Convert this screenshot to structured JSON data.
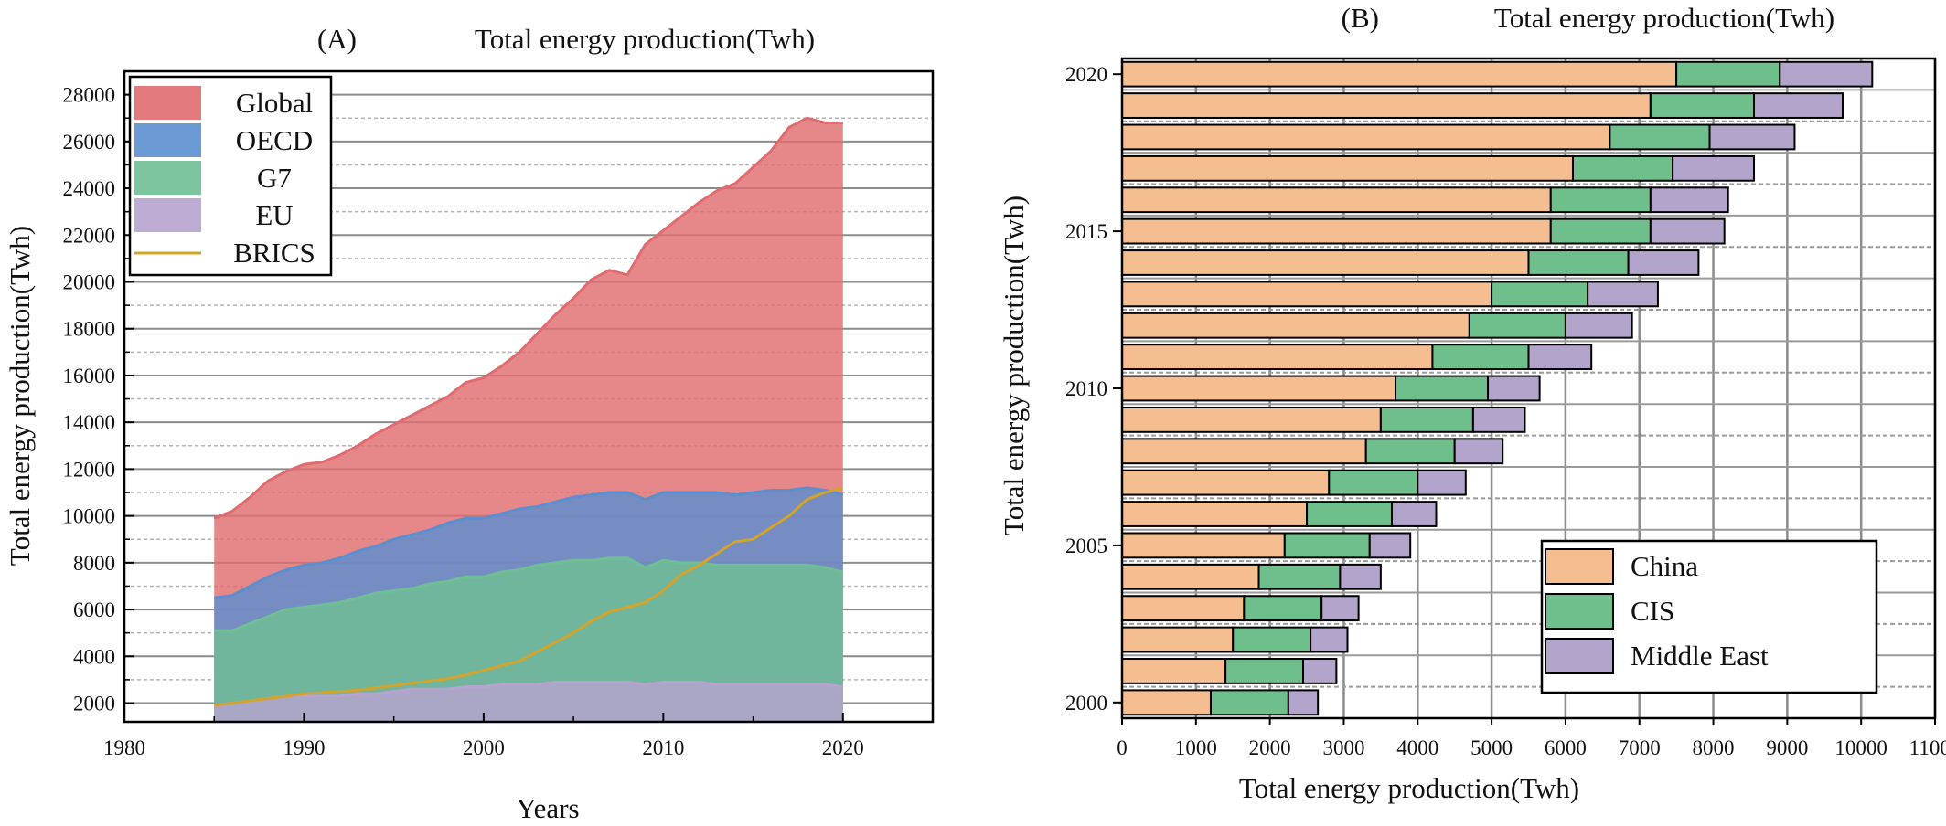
{
  "chart_data": [
    {
      "type": "area",
      "panel": "(A)",
      "title": "Total energy production(Twh)",
      "xlabel": "Years",
      "ylabel": "Total energy production(Twh)",
      "xlim": [
        1980,
        2025
      ],
      "ylim": [
        1200,
        29000
      ],
      "x_ticks": [
        1980,
        1990,
        2000,
        2010,
        2020
      ],
      "y_ticks": [
        2000,
        4000,
        6000,
        8000,
        10000,
        12000,
        14000,
        16000,
        18000,
        20000,
        22000,
        24000,
        26000,
        28000
      ],
      "grid": "horizontal",
      "legend_position": "top-left",
      "colors": {
        "Global": "#e06c6f",
        "OECD": "#5b8fcf",
        "G7": "#6fbf95",
        "EU": "#b7a3cf",
        "BRICS": "#d4a32a"
      },
      "x": [
        1985,
        1986,
        1987,
        1988,
        1989,
        1990,
        1991,
        1992,
        1993,
        1994,
        1995,
        1996,
        1997,
        1998,
        1999,
        2000,
        2001,
        2002,
        2003,
        2004,
        2005,
        2006,
        2007,
        2008,
        2009,
        2010,
        2011,
        2012,
        2013,
        2014,
        2015,
        2016,
        2017,
        2018,
        2019,
        2020
      ],
      "series": [
        {
          "name": "Global",
          "kind": "area",
          "values": [
            9900,
            10200,
            10800,
            11500,
            11900,
            12200,
            12300,
            12600,
            13000,
            13500,
            13900,
            14300,
            14700,
            15100,
            15700,
            15900,
            16400,
            17000,
            17800,
            18600,
            19300,
            20100,
            20500,
            20300,
            21600,
            22200,
            22800,
            23400,
            23900,
            24200,
            24900,
            25600,
            26600,
            27000,
            26800,
            26800
          ]
        },
        {
          "name": "OECD",
          "kind": "area",
          "values": [
            6500,
            6600,
            7000,
            7400,
            7700,
            7900,
            8000,
            8200,
            8500,
            8700,
            9000,
            9200,
            9400,
            9700,
            9900,
            9900,
            10100,
            10300,
            10400,
            10600,
            10800,
            10900,
            11000,
            11000,
            10700,
            11000,
            11000,
            11000,
            11000,
            10900,
            11000,
            11100,
            11100,
            11200,
            11100,
            10900
          ]
        },
        {
          "name": "G7",
          "kind": "area",
          "values": [
            5100,
            5100,
            5400,
            5700,
            6000,
            6100,
            6200,
            6300,
            6500,
            6700,
            6800,
            6900,
            7100,
            7200,
            7400,
            7400,
            7600,
            7700,
            7900,
            8000,
            8100,
            8100,
            8200,
            8200,
            7800,
            8100,
            8000,
            8000,
            7900,
            7900,
            7900,
            7900,
            7900,
            7900,
            7800,
            7600
          ]
        },
        {
          "name": "EU",
          "kind": "area",
          "values": [
            1900,
            2000,
            2100,
            2200,
            2300,
            2300,
            2300,
            2300,
            2400,
            2400,
            2500,
            2600,
            2600,
            2600,
            2700,
            2700,
            2800,
            2800,
            2800,
            2900,
            2900,
            2900,
            2900,
            2900,
            2800,
            2900,
            2900,
            2900,
            2800,
            2800,
            2800,
            2800,
            2800,
            2800,
            2800,
            2700
          ]
        },
        {
          "name": "BRICS",
          "kind": "line",
          "values": [
            1900,
            2000,
            2100,
            2200,
            2300,
            2400,
            2450,
            2500,
            2550,
            2650,
            2750,
            2850,
            2950,
            3050,
            3200,
            3400,
            3600,
            3800,
            4200,
            4600,
            5000,
            5500,
            5900,
            6100,
            6300,
            6800,
            7500,
            7900,
            8400,
            8900,
            9000,
            9500,
            10000,
            10700,
            11000,
            11200
          ]
        }
      ]
    },
    {
      "type": "bar",
      "orientation": "horizontal",
      "stacked": true,
      "panel": "(B)",
      "title": "Total energy production(Twh)",
      "xlabel": "Total energy production(Twh)",
      "ylabel": "Total energy production(Twh)",
      "xlim": [
        0,
        11000
      ],
      "x_ticks": [
        0,
        1000,
        2000,
        3000,
        4000,
        5000,
        6000,
        7000,
        8000,
        9000,
        10000,
        11000
      ],
      "y_ticks": [
        2000,
        2005,
        2010,
        2015,
        2020
      ],
      "grid": "both",
      "legend_position": "bottom-right",
      "categories": [
        2000,
        2001,
        2002,
        2003,
        2004,
        2005,
        2006,
        2007,
        2008,
        2009,
        2010,
        2011,
        2012,
        2013,
        2014,
        2015,
        2016,
        2017,
        2018,
        2019,
        2020
      ],
      "colors": {
        "China": "#f4be91",
        "CIS": "#6fbf8d",
        "Middle East": "#b3a4cc"
      },
      "series": [
        {
          "name": "China",
          "values": [
            1200,
            1400,
            1500,
            1650,
            1850,
            2200,
            2500,
            2800,
            3300,
            3500,
            3700,
            4200,
            4700,
            5000,
            5500,
            5800,
            5800,
            6100,
            6600,
            7150,
            7500
          ]
        },
        {
          "name": "CIS",
          "values": [
            1050,
            1050,
            1050,
            1050,
            1100,
            1150,
            1150,
            1200,
            1200,
            1250,
            1250,
            1300,
            1300,
            1300,
            1350,
            1350,
            1350,
            1350,
            1350,
            1400,
            1400
          ]
        },
        {
          "name": "Middle East",
          "values": [
            400,
            450,
            500,
            500,
            550,
            550,
            600,
            650,
            650,
            700,
            700,
            850,
            900,
            950,
            950,
            1000,
            1050,
            1100,
            1150,
            1200,
            1250
          ]
        }
      ]
    }
  ]
}
